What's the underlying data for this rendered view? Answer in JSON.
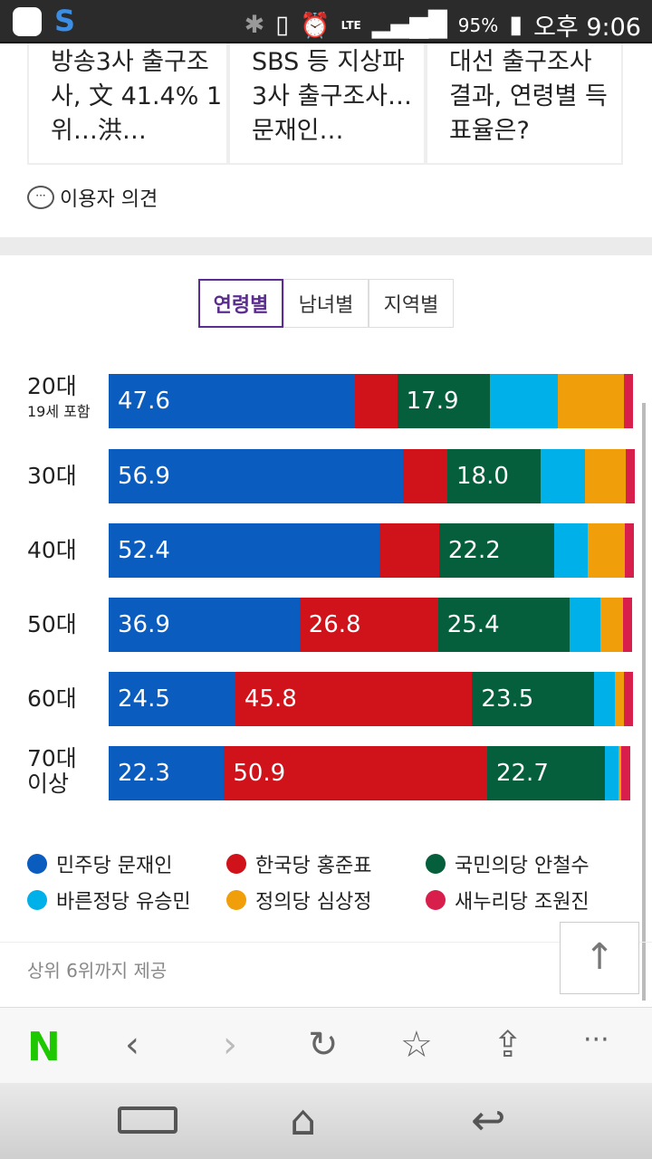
{
  "status_bar": {
    "battery": "95%",
    "time": "오후 9:06",
    "network": "LTE"
  },
  "related_articles": [
    "방송3사 출구조사, 文 41.4% 1위…洪…",
    "SBS 등 지상파 3사 출구조사…문재인…",
    "대선 출구조사 결과, 연령별 득표율은?"
  ],
  "comments_label": "이용자 의견",
  "tabs": [
    {
      "label": "연령별",
      "active": true
    },
    {
      "label": "남녀별"
    },
    {
      "label": "지역별"
    }
  ],
  "chart_data": {
    "type": "bar",
    "orientation": "horizontal",
    "stacked": true,
    "xlim": [
      0,
      100
    ],
    "categories": [
      "20대",
      "30대",
      "40대",
      "50대",
      "60대",
      "70대 이상"
    ],
    "category_notes": {
      "20대": "19세 포함"
    },
    "series": [
      {
        "name": "민주당 문재인",
        "color": "#0a5cbf",
        "values": [
          47.6,
          56.9,
          52.4,
          36.9,
          24.5,
          22.3
        ],
        "labeled": true
      },
      {
        "name": "한국당 홍준표",
        "color": "#d0121b",
        "values": [
          8.2,
          8.6,
          11.5,
          26.8,
          45.8,
          50.9
        ],
        "labeled": [
          false,
          false,
          false,
          true,
          true,
          true
        ]
      },
      {
        "name": "국민의당 안철수",
        "color": "#065f3c",
        "values": [
          17.9,
          18.0,
          22.2,
          25.4,
          23.5,
          22.7
        ],
        "labeled": true
      },
      {
        "name": "바른정당 유승민",
        "color": "#00b0e8",
        "values": [
          13.2,
          8.6,
          6.6,
          6.0,
          4.1,
          2.7
        ],
        "labeled": false
      },
      {
        "name": "정의당 심상정",
        "color": "#f09e0a",
        "values": [
          12.7,
          7.9,
          7.1,
          4.4,
          1.8,
          0.6
        ],
        "labeled": false
      },
      {
        "name": "새누리당 조원진",
        "color": "#d81e4a",
        "values": [
          0.3,
          0.3,
          0.3,
          0.3,
          0.3,
          0.5
        ],
        "labeled": false
      }
    ]
  },
  "footnote": "상위 6위까지 제공",
  "toolbar": [
    "naver-logo",
    "back",
    "forward",
    "refresh",
    "bookmark",
    "share",
    "more"
  ],
  "logo_text": "N"
}
